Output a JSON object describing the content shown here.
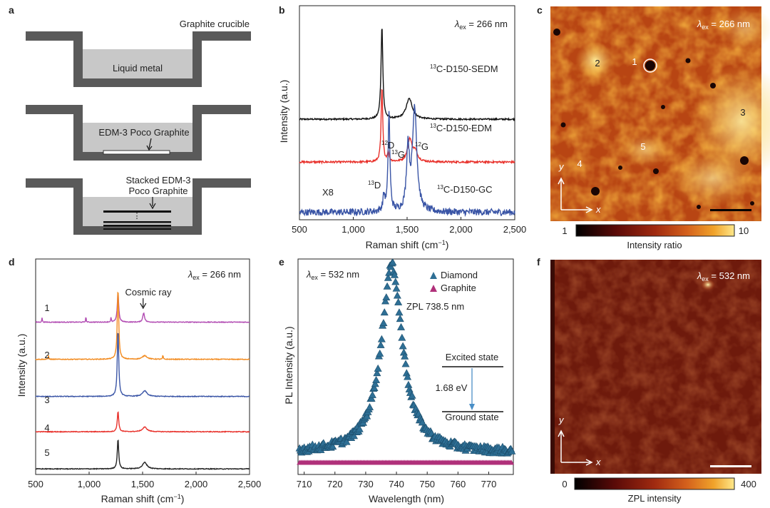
{
  "panels": {
    "a": {
      "label": "a",
      "crucible_label": "Graphite crucible",
      "step1_label": "Liquid metal",
      "step2_label": "EDM-3 Poco Graphite",
      "step3_label_line1": "Stacked EDM-3",
      "step3_label_line2": "Poco Graphite",
      "stack_dots": "⋮"
    },
    "b": {
      "label": "b"
    },
    "c": {
      "label": "c",
      "lambda": "λex = 266 nm",
      "markers": [
        "1",
        "2",
        "3",
        "4",
        "5"
      ],
      "axis_y": "y",
      "axis_x": "x",
      "colorbar_min": "1",
      "colorbar_max": "10",
      "colorbar_label": "Intensity ratio",
      "colors": [
        "#000000",
        "#5a0a08",
        "#a02a10",
        "#d4601c",
        "#f0a22a",
        "#ffe88a"
      ]
    },
    "d": {
      "label": "d"
    },
    "e": {
      "label": "e"
    },
    "f": {
      "label": "f",
      "lambda": "λex = 532 nm",
      "axis_y": "y",
      "axis_x": "x",
      "colorbar_min": "0",
      "colorbar_max": "400",
      "colorbar_label": "ZPL intensity",
      "colors": [
        "#000000",
        "#5a0a08",
        "#a02a10",
        "#d4601c",
        "#f0a22a",
        "#ffe88a"
      ]
    }
  },
  "chart_data": [
    {
      "panel": "b",
      "type": "line",
      "title": "",
      "xlabel": "Raman shift (cm−1)",
      "ylabel": "Intensity (a.u.)",
      "xlim": [
        500,
        2500
      ],
      "xticks": [
        500,
        1000,
        1500,
        2000,
        2500
      ],
      "xtick_labels": [
        "500",
        "1,000",
        "1,500",
        "2,000",
        "2,500"
      ],
      "annotation_lambda": "λex = 266 nm",
      "series": [
        {
          "name": "13C-D150-SEDM",
          "color": "#111111",
          "baseline": 5.4,
          "peaks": [
            {
              "x": 1266,
              "h": 5.0,
              "w": 10
            },
            {
              "x": 1520,
              "h": 1.1,
              "w": 35
            }
          ],
          "noise": 0.04
        },
        {
          "name": "13C-D150-EDM",
          "color": "#e8302a",
          "baseline": 3.1,
          "peaks": [
            {
              "x": 1266,
              "h": 4.0,
              "w": 9
            },
            {
              "x": 1325,
              "h": 0.5,
              "w": 10
            },
            {
              "x": 1525,
              "h": 1.2,
              "w": 25
            },
            {
              "x": 1575,
              "h": 0.5,
              "w": 25
            }
          ],
          "noise": 0.05
        },
        {
          "name": "13C-D150-GC",
          "color": "#3a55a6",
          "baseline": 0.4,
          "peaks": [
            {
              "x": 1285,
              "h": 0.8,
              "w": 12
            },
            {
              "x": 1332,
              "h": 5.3,
              "w": 10
            },
            {
              "x": 1508,
              "h": 3.3,
              "w": 16
            },
            {
              "x": 1570,
              "h": 5.6,
              "w": 24
            }
          ],
          "noise": 0.18,
          "multiplier": "X8"
        }
      ],
      "peak_labels": [
        {
          "text": "12D",
          "x": 1332
        },
        {
          "text": "13G",
          "x": 1508
        },
        {
          "text": "12G",
          "x": 1570
        },
        {
          "text": "13D",
          "x": 1285
        }
      ]
    },
    {
      "panel": "d",
      "type": "line",
      "xlabel": "Raman shift (cm−1)",
      "ylabel": "Intensity (a.u.)",
      "xlim": [
        500,
        2500
      ],
      "xticks": [
        500,
        1000,
        1500,
        2000,
        2500
      ],
      "xtick_labels": [
        "500",
        "1,000",
        "1,500",
        "2,000",
        "2,500"
      ],
      "annotation_lambda": "λex = 266 nm",
      "annotation_text": "Cosmic ray",
      "annotation_x": 1505,
      "series": [
        {
          "name": "1",
          "color": "#b14ab2",
          "baseline": 8.2,
          "peaks": [
            {
              "x": 1270,
              "h": 1.6,
              "w": 8
            },
            {
              "x": 1510,
              "h": 0.5,
              "w": 10
            },
            {
              "x": 970,
              "h": 0.3,
              "w": 3
            },
            {
              "x": 560,
              "h": 0.25,
              "w": 3
            },
            {
              "x": 1205,
              "h": 0.25,
              "w": 3
            }
          ]
        },
        {
          "name": "2",
          "color": "#f28a1e",
          "baseline": 6.2,
          "peaks": [
            {
              "x": 1270,
              "h": 3.8,
              "w": 8
            },
            {
              "x": 1520,
              "h": 0.2,
              "w": 25
            },
            {
              "x": 1690,
              "h": 0.25,
              "w": 3
            },
            {
              "x": 620,
              "h": 0.2,
              "w": 3
            }
          ]
        },
        {
          "name": "3",
          "color": "#3a55a6",
          "baseline": 4.2,
          "peaks": [
            {
              "x": 1270,
              "h": 3.6,
              "w": 8
            },
            {
              "x": 1520,
              "h": 0.3,
              "w": 25
            }
          ]
        },
        {
          "name": "4",
          "color": "#e8302a",
          "baseline": 2.3,
          "peaks": [
            {
              "x": 1270,
              "h": 1.1,
              "w": 8
            },
            {
              "x": 1520,
              "h": 0.25,
              "w": 25
            }
          ]
        },
        {
          "name": "5",
          "color": "#222222",
          "baseline": 0.3,
          "peaks": [
            {
              "x": 1270,
              "h": 1.6,
              "w": 8
            },
            {
              "x": 1520,
              "h": 0.35,
              "w": 25
            }
          ]
        }
      ]
    },
    {
      "panel": "e",
      "type": "scatter",
      "xlabel": "Wavelength (nm)",
      "ylabel": "PL Intensity (a.u.)",
      "xlim": [
        708,
        778
      ],
      "xticks": [
        710,
        720,
        730,
        740,
        750,
        760,
        770
      ],
      "xtick_labels": [
        "710",
        "720",
        "730",
        "740",
        "750",
        "760",
        "770"
      ],
      "annotation_lambda": "λex = 532 nm",
      "annotation_zpl": "ZPL 738.5 nm",
      "excited_state": "Excited state",
      "ground_state": "Ground state",
      "energy_gap": "1.68 eV",
      "series": [
        {
          "name": "Diamond",
          "color": "#2e6f95",
          "peak_x": 738.5,
          "peak_height": 1.0,
          "gamma": 4.2,
          "baseline": 0.05
        },
        {
          "name": "Graphite",
          "color": "#b0307a",
          "level": 0.0
        }
      ]
    }
  ]
}
